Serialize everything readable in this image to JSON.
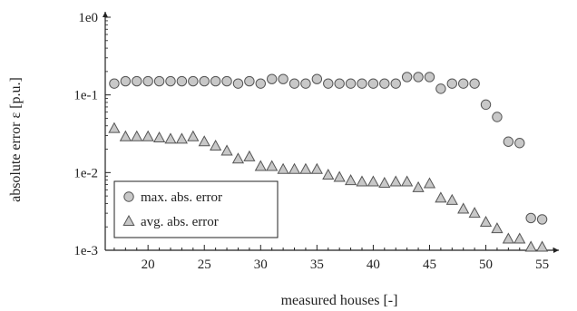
{
  "chart_data": {
    "type": "scatter",
    "xlabel": "measured houses [-]",
    "ylabel": "absolute error ε [p.u.]",
    "yscale": "log",
    "xlim": [
      16.2,
      56
    ],
    "ylim": [
      0.001,
      1
    ],
    "xticks": [
      20,
      25,
      30,
      35,
      40,
      45,
      50,
      55
    ],
    "xtick_labels": [
      "20",
      "25",
      "30",
      "35",
      "40",
      "45",
      "50",
      "55"
    ],
    "yticks": [
      0.001,
      0.01,
      0.1,
      1
    ],
    "ytick_labels": [
      "1e-3",
      "1e-2",
      "1e-1",
      "1e0"
    ],
    "grid": false,
    "legend_position": "lower-left",
    "x": [
      17,
      18,
      19,
      20,
      21,
      22,
      23,
      24,
      25,
      26,
      27,
      28,
      29,
      30,
      31,
      32,
      33,
      34,
      35,
      36,
      37,
      38,
      39,
      40,
      41,
      42,
      43,
      44,
      45,
      46,
      47,
      48,
      49,
      50,
      51,
      52,
      53,
      54,
      55
    ],
    "series": [
      {
        "name": "max. abs. error",
        "marker": "circle",
        "color": "#c8c8c8",
        "stroke": "#555555",
        "values": [
          0.14,
          0.15,
          0.15,
          0.15,
          0.15,
          0.15,
          0.15,
          0.15,
          0.15,
          0.15,
          0.15,
          0.14,
          0.15,
          0.14,
          0.16,
          0.16,
          0.14,
          0.14,
          0.16,
          0.14,
          0.14,
          0.14,
          0.14,
          0.14,
          0.14,
          0.14,
          0.17,
          0.17,
          0.17,
          0.12,
          0.14,
          0.14,
          0.14,
          0.075,
          0.052,
          0.025,
          0.024,
          0.0026,
          0.0025
        ]
      },
      {
        "name": "avg. abs. error",
        "marker": "triangle",
        "color": "#c8c8c8",
        "stroke": "#555555",
        "values": [
          0.037,
          0.029,
          0.029,
          0.029,
          0.028,
          0.027,
          0.027,
          0.029,
          0.025,
          0.022,
          0.019,
          0.015,
          0.016,
          0.012,
          0.012,
          0.011,
          0.011,
          0.011,
          0.011,
          0.0093,
          0.0087,
          0.0079,
          0.0076,
          0.0076,
          0.0073,
          0.0076,
          0.0076,
          0.0064,
          0.0072,
          0.0047,
          0.0044,
          0.0034,
          0.003,
          0.0023,
          0.0019,
          0.0014,
          0.0014,
          0.0011,
          0.0011
        ]
      }
    ]
  }
}
